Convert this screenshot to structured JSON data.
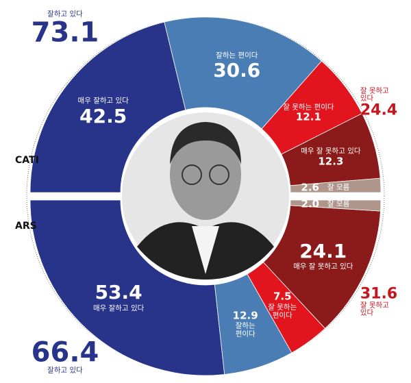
{
  "chart_data": [
    {
      "type": "half-donut",
      "label": "CATI",
      "categories": [
        "매우 잘하고 있다",
        "잘하는 편이다",
        "잘 못하는 편이다",
        "매우 잘 못하고 있다",
        "잘 모름"
      ],
      "values": [
        42.5,
        30.6,
        12.1,
        12.3,
        2.6
      ],
      "value_labels": [
        "42.5",
        "30.6",
        "12.1",
        "12.3",
        "2.6"
      ],
      "colors": [
        "#28338a",
        "#4a7db3",
        "#e2141d",
        "#8b1a1a",
        "#ae978a"
      ],
      "totals": [
        {
          "label": "잘하고 있다",
          "value": 73.1,
          "color": "#28338a"
        },
        {
          "label": "잘 못하고 있다",
          "value": 24.4,
          "color": "#c8141d"
        }
      ]
    },
    {
      "type": "half-donut",
      "label": "ARS",
      "categories": [
        "매우 잘하고 있다",
        "잘하는\n편이다",
        "잘 못하는\n편이다",
        "매우 잘 못하고 있다",
        "잘 모름"
      ],
      "values": [
        53.4,
        12.9,
        7.5,
        24.1,
        2.0
      ],
      "value_labels": [
        "53.4",
        "12.9",
        "7.5",
        "24.1",
        "2.0"
      ],
      "colors": [
        "#28338a",
        "#4a7db3",
        "#e2141d",
        "#8b1a1a",
        "#ae978a"
      ],
      "totals": [
        {
          "label": "잘하고 있다",
          "value": 66.4,
          "color": "#28338a"
        },
        {
          "label": "잘 못하고 있다",
          "value": 31.6,
          "color": "#c8141d"
        }
      ]
    }
  ]
}
